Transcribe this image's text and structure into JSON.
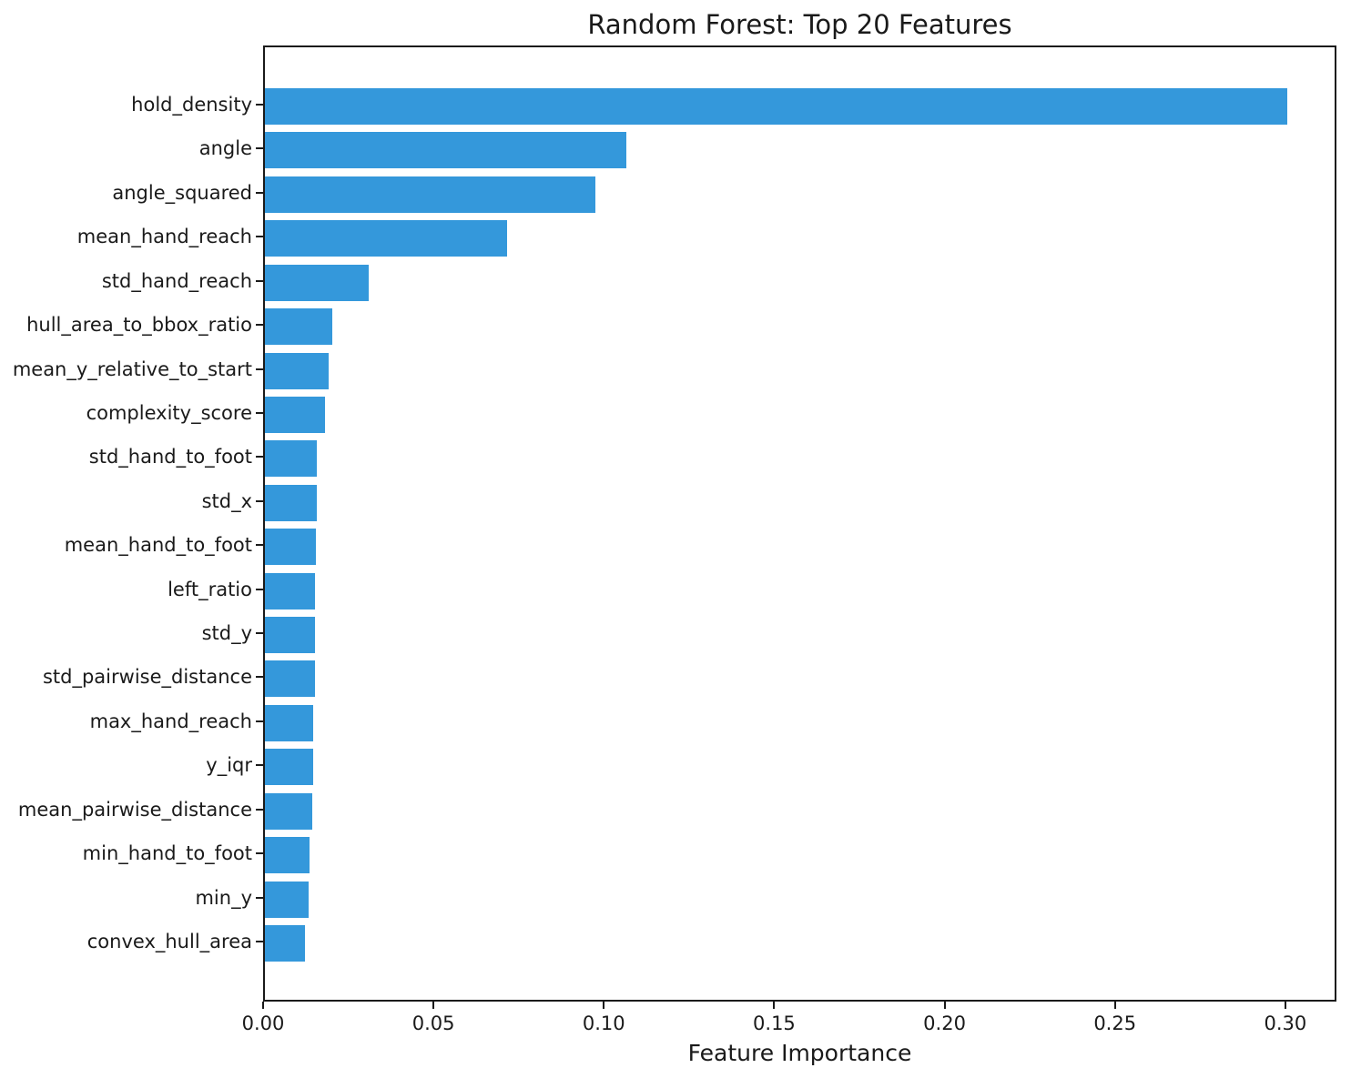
{
  "chart_data": {
    "type": "bar",
    "orientation": "horizontal",
    "title": "Random Forest: Top 20 Features",
    "xlabel": "Feature Importance",
    "ylabel": "",
    "categories": [
      "hold_density",
      "angle",
      "angle_squared",
      "mean_hand_reach",
      "std_hand_reach",
      "hull_area_to_bbox_ratio",
      "mean_y_relative_to_start",
      "complexity_score",
      "std_hand_to_foot",
      "std_x",
      "mean_hand_to_foot",
      "left_ratio",
      "std_y",
      "std_pairwise_distance",
      "max_hand_reach",
      "y_iqr",
      "mean_pairwise_distance",
      "min_hand_to_foot",
      "min_y",
      "convex_hull_area"
    ],
    "values": [
      0.3,
      0.106,
      0.097,
      0.071,
      0.0305,
      0.0197,
      0.0187,
      0.0177,
      0.0153,
      0.0151,
      0.015,
      0.0148,
      0.0147,
      0.0146,
      0.0142,
      0.0141,
      0.0139,
      0.0132,
      0.0129,
      0.0118
    ],
    "xlim": [
      0,
      0.315
    ],
    "xticks": [
      0,
      0.05,
      0.1,
      0.15,
      0.2,
      0.25,
      0.3
    ],
    "xtick_labels": [
      "0.00",
      "0.05",
      "0.10",
      "0.15",
      "0.20",
      "0.25",
      "0.30"
    ],
    "bar_color": "#3498db",
    "text_color": "#1a1a1a",
    "background_color": "#ffffff",
    "grid": false,
    "legend": false
  }
}
